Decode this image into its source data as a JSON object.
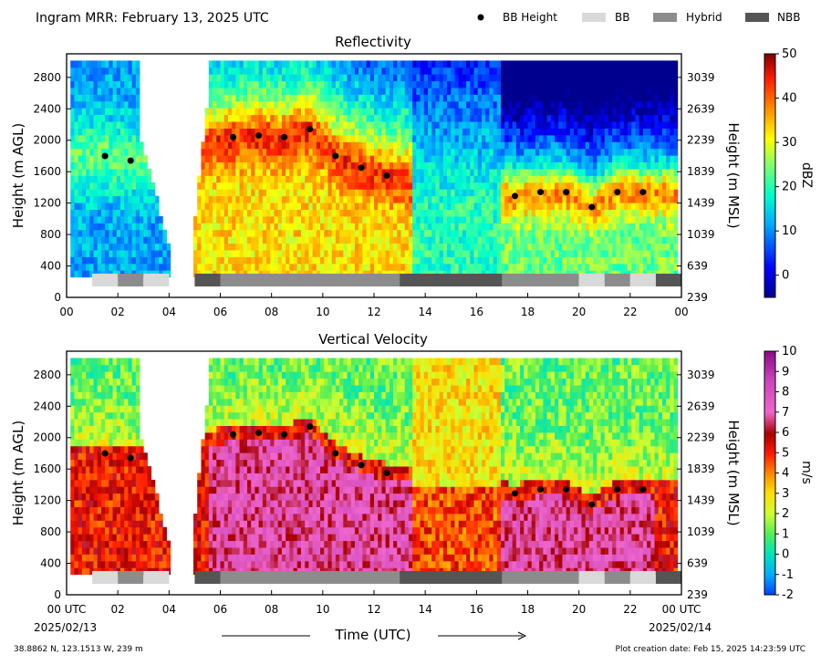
{
  "header": {
    "title": "Ingram MRR:  February 13, 2025 UTC"
  },
  "legend": {
    "items": [
      {
        "label": "BB Height",
        "kind": "dot",
        "color": "#000000"
      },
      {
        "label": "BB",
        "kind": "bar",
        "color": "#d9d9d9"
      },
      {
        "label": "Hybrid",
        "kind": "bar",
        "color": "#8c8c8c"
      },
      {
        "label": "NBB",
        "kind": "bar",
        "color": "#555555"
      }
    ]
  },
  "footer": {
    "location": "38.8862 N, 123.1513 W, 239 m",
    "creation_date": "Plot creation date: Feb 15, 2025 14:23:59 UTC",
    "time_label": "Time (UTC)",
    "start_date": "2025/02/13",
    "end_date": "2025/02/14"
  },
  "chart_data": [
    {
      "type": "heatmap",
      "title": "Reflectivity",
      "xlabel": "",
      "ylabel": "Height (m AGL)",
      "ylabel_right": "Height (m MSL)",
      "xlim": [
        0,
        24
      ],
      "ylim": [
        0,
        3100
      ],
      "x_ticks": [
        "00",
        "02",
        "04",
        "06",
        "08",
        "10",
        "12",
        "14",
        "16",
        "18",
        "20",
        "22",
        "00"
      ],
      "y_ticks": [
        0,
        400,
        800,
        1200,
        1600,
        2000,
        2400,
        2800
      ],
      "y_ticks_right": [
        "239",
        "639",
        "1039",
        "1439",
        "1839",
        "2239",
        "2639",
        "3039"
      ],
      "colorbar": {
        "label": "dBZ",
        "min": -5,
        "max": 50,
        "ticks": [
          0,
          10,
          20,
          30,
          40,
          50
        ]
      },
      "bb_height_points": [
        {
          "x": 1.5,
          "y": 1800
        },
        {
          "x": 2.5,
          "y": 1740
        },
        {
          "x": 6.5,
          "y": 2040
        },
        {
          "x": 7.5,
          "y": 2060
        },
        {
          "x": 8.5,
          "y": 2040
        },
        {
          "x": 9.5,
          "y": 2140
        },
        {
          "x": 10.5,
          "y": 1800
        },
        {
          "x": 11.5,
          "y": 1650
        },
        {
          "x": 12.5,
          "y": 1550
        },
        {
          "x": 17.5,
          "y": 1290
        },
        {
          "x": 18.5,
          "y": 1340
        },
        {
          "x": 19.5,
          "y": 1340
        },
        {
          "x": 20.5,
          "y": 1150
        },
        {
          "x": 21.5,
          "y": 1340
        },
        {
          "x": 22.5,
          "y": 1340
        }
      ],
      "precip_type_segments": [
        {
          "start": 1,
          "end": 2,
          "type": "BB"
        },
        {
          "start": 2,
          "end": 3,
          "type": "Hybrid"
        },
        {
          "start": 3,
          "end": 4,
          "type": "BB"
        },
        {
          "start": 5,
          "end": 6,
          "type": "NBB"
        },
        {
          "start": 6,
          "end": 13,
          "type": "Hybrid"
        },
        {
          "start": 13,
          "end": 17,
          "type": "NBB"
        },
        {
          "start": 17,
          "end": 20,
          "type": "Hybrid"
        },
        {
          "start": 20,
          "end": 21,
          "type": "BB"
        },
        {
          "start": 21,
          "end": 22,
          "type": "Hybrid"
        },
        {
          "start": 22,
          "end": 23,
          "type": "BB"
        },
        {
          "start": 23,
          "end": 24,
          "type": "NBB"
        }
      ]
    },
    {
      "type": "heatmap",
      "title": "Vertical Velocity",
      "xlabel": "Time (UTC)",
      "ylabel": "Height (m AGL)",
      "ylabel_right": "Height (m MSL)",
      "xlim": [
        0,
        24
      ],
      "ylim": [
        0,
        3100
      ],
      "x_ticks": [
        "00 UTC",
        "02",
        "04",
        "06",
        "08",
        "10",
        "12",
        "14",
        "16",
        "18",
        "20",
        "22",
        "00 UTC"
      ],
      "y_ticks": [
        0,
        400,
        800,
        1200,
        1600,
        2000,
        2400,
        2800
      ],
      "y_ticks_right": [
        "239",
        "639",
        "1039",
        "1439",
        "1839",
        "2239",
        "2639",
        "3039"
      ],
      "colorbar": {
        "label": "m/s",
        "min": -2,
        "max": 10,
        "ticks": [
          -2,
          -1,
          0,
          1,
          2,
          3,
          4,
          5,
          6,
          7,
          8,
          9,
          10
        ]
      },
      "bb_height_points": [
        {
          "x": 1.5,
          "y": 1800
        },
        {
          "x": 2.5,
          "y": 1740
        },
        {
          "x": 6.5,
          "y": 2040
        },
        {
          "x": 7.5,
          "y": 2060
        },
        {
          "x": 8.5,
          "y": 2040
        },
        {
          "x": 9.5,
          "y": 2140
        },
        {
          "x": 10.5,
          "y": 1800
        },
        {
          "x": 11.5,
          "y": 1650
        },
        {
          "x": 12.5,
          "y": 1550
        },
        {
          "x": 17.5,
          "y": 1290
        },
        {
          "x": 18.5,
          "y": 1340
        },
        {
          "x": 19.5,
          "y": 1340
        },
        {
          "x": 20.5,
          "y": 1150
        },
        {
          "x": 21.5,
          "y": 1340
        },
        {
          "x": 22.5,
          "y": 1340
        }
      ],
      "precip_type_segments": [
        {
          "start": 1,
          "end": 2,
          "type": "BB"
        },
        {
          "start": 2,
          "end": 3,
          "type": "Hybrid"
        },
        {
          "start": 3,
          "end": 4,
          "type": "BB"
        },
        {
          "start": 5,
          "end": 6,
          "type": "NBB"
        },
        {
          "start": 6,
          "end": 13,
          "type": "Hybrid"
        },
        {
          "start": 13,
          "end": 17,
          "type": "NBB"
        },
        {
          "start": 17,
          "end": 20,
          "type": "Hybrid"
        },
        {
          "start": 20,
          "end": 21,
          "type": "BB"
        },
        {
          "start": 21,
          "end": 22,
          "type": "Hybrid"
        },
        {
          "start": 22,
          "end": 23,
          "type": "BB"
        },
        {
          "start": 23,
          "end": 24,
          "type": "NBB"
        }
      ]
    }
  ]
}
